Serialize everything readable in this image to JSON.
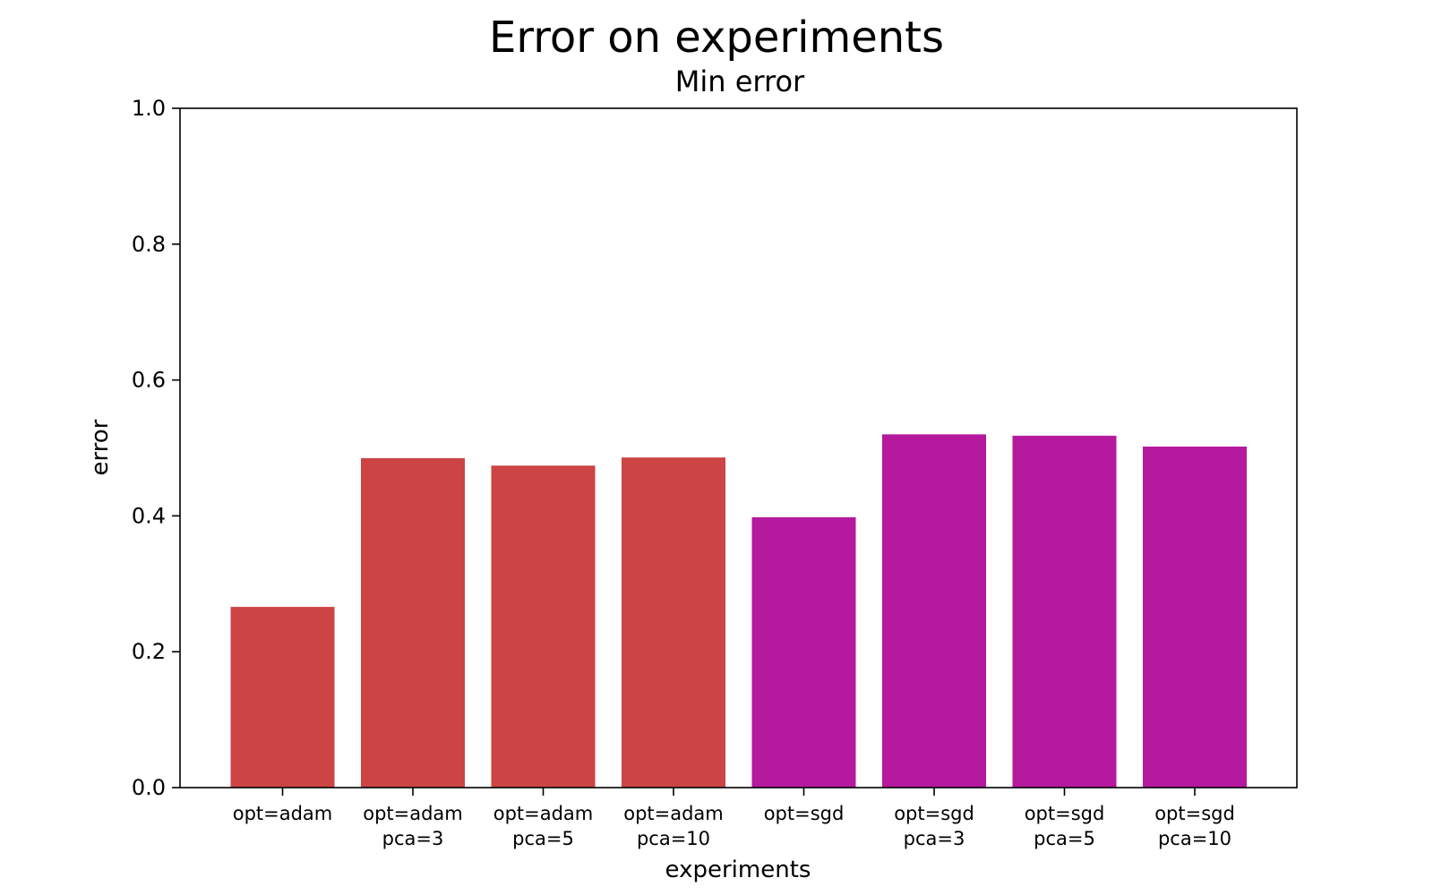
{
  "chart_data": {
    "type": "bar",
    "title": "Error on experiments",
    "subtitle": "Min error",
    "xlabel": "experiments",
    "ylabel": "error",
    "ylim": [
      0,
      1.0
    ],
    "yticks": [
      "0.0",
      "0.2",
      "0.4",
      "0.6",
      "0.8",
      "1.0"
    ],
    "ytick_values": [
      0,
      0.2,
      0.4,
      0.6,
      0.8,
      1.0
    ],
    "grid": false,
    "categories": [
      [
        "opt=adam"
      ],
      [
        "opt=adam",
        "pca=3"
      ],
      [
        "opt=adam",
        "pca=5"
      ],
      [
        "opt=adam",
        "pca=10"
      ],
      [
        "opt=sgd"
      ],
      [
        "opt=sgd",
        "pca=3"
      ],
      [
        "opt=sgd",
        "pca=5"
      ],
      [
        "opt=sgd",
        "pca=10"
      ]
    ],
    "values": [
      0.266,
      0.485,
      0.474,
      0.486,
      0.398,
      0.52,
      0.518,
      0.502
    ],
    "colors": [
      "#cc4444",
      "#cc4444",
      "#cc4444",
      "#cc4444",
      "#b5199e",
      "#b5199e",
      "#b5199e",
      "#b5199e"
    ]
  }
}
